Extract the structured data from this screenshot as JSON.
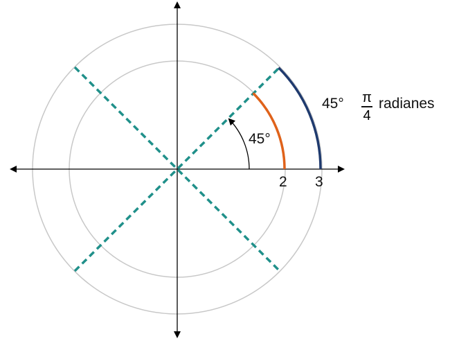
{
  "labels": {
    "inner_angle": "45°",
    "outer_angle": "45°",
    "fraction_numerator": "π",
    "fraction_denominator": "4",
    "radians_word": "radianes",
    "tick_2": "2",
    "tick_3": "3"
  },
  "colors": {
    "inner_arc": "#e0621a",
    "outer_arc": "#1f3a6e",
    "dashed_lines": "#20908a",
    "circles": "#c8c8c8",
    "axes": "#000000"
  },
  "angle_degrees": 45
}
